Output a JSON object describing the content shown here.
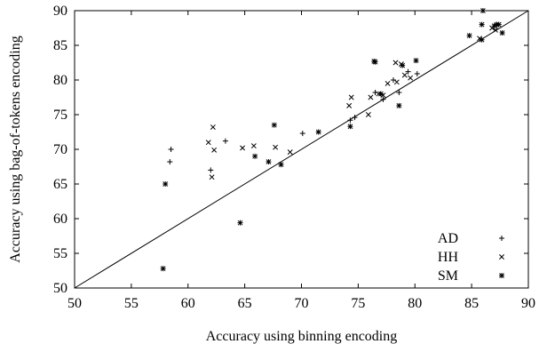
{
  "chart_data": {
    "type": "scatter",
    "xlabel": "Accuracy using binning encoding",
    "ylabel": "Accuracy using bag-of-tokens encoding",
    "xlim": [
      50,
      90
    ],
    "ylim": [
      50,
      90
    ],
    "xticks": [
      "50",
      "55",
      "60",
      "65",
      "70",
      "75",
      "80",
      "85",
      "90"
    ],
    "yticks": [
      "50",
      "55",
      "60",
      "65",
      "70",
      "75",
      "80",
      "85",
      "90"
    ],
    "legend_position": "bottom-right",
    "reference_line": "y = x",
    "series": [
      {
        "name": "AD",
        "marker": "plus",
        "points": [
          [
            58.5,
            70.0
          ],
          [
            58.4,
            68.2
          ],
          [
            62.0,
            67.0
          ],
          [
            63.3,
            71.2
          ],
          [
            70.1,
            72.3
          ],
          [
            74.3,
            74.2
          ],
          [
            74.7,
            74.6
          ],
          [
            76.5,
            78.2
          ],
          [
            77.2,
            77.2
          ],
          [
            78.1,
            80.0
          ],
          [
            78.6,
            78.2
          ],
          [
            79.4,
            81.2
          ],
          [
            80.2,
            80.9
          ],
          [
            87.2,
            88.0
          ]
        ]
      },
      {
        "name": "HH",
        "marker": "cross",
        "points": [
          [
            61.8,
            71.0
          ],
          [
            62.1,
            66.0
          ],
          [
            62.2,
            73.2
          ],
          [
            62.3,
            69.9
          ],
          [
            64.8,
            70.2
          ],
          [
            65.8,
            70.5
          ],
          [
            67.7,
            70.3
          ],
          [
            69.0,
            69.6
          ],
          [
            74.2,
            76.3
          ],
          [
            74.4,
            77.5
          ],
          [
            75.9,
            75.0
          ],
          [
            76.1,
            77.5
          ],
          [
            76.8,
            78.0
          ],
          [
            77.2,
            77.8
          ],
          [
            77.6,
            79.5
          ],
          [
            78.3,
            82.5
          ],
          [
            78.4,
            79.7
          ],
          [
            78.8,
            82.3
          ],
          [
            79.1,
            80.7
          ],
          [
            79.6,
            80.3
          ],
          [
            85.7,
            86.0
          ],
          [
            86.8,
            87.5
          ],
          [
            87.1,
            87.2
          ]
        ]
      },
      {
        "name": "SM",
        "marker": "star",
        "points": [
          [
            57.8,
            52.8
          ],
          [
            58.0,
            65.0
          ],
          [
            64.6,
            59.4
          ],
          [
            65.9,
            69.0
          ],
          [
            67.1,
            68.2
          ],
          [
            67.6,
            73.5
          ],
          [
            68.2,
            67.8
          ],
          [
            71.5,
            72.5
          ],
          [
            74.3,
            73.3
          ],
          [
            76.4,
            82.7
          ],
          [
            76.5,
            82.6
          ],
          [
            77.0,
            78.0
          ],
          [
            78.6,
            76.3
          ],
          [
            78.9,
            82.1
          ],
          [
            80.1,
            82.8
          ],
          [
            84.8,
            86.4
          ],
          [
            85.9,
            85.8
          ],
          [
            85.9,
            88.0
          ],
          [
            86.0,
            90.0
          ],
          [
            87.0,
            87.8
          ],
          [
            87.2,
            88.0
          ],
          [
            87.4,
            88.0
          ],
          [
            87.7,
            86.8
          ]
        ]
      }
    ]
  }
}
